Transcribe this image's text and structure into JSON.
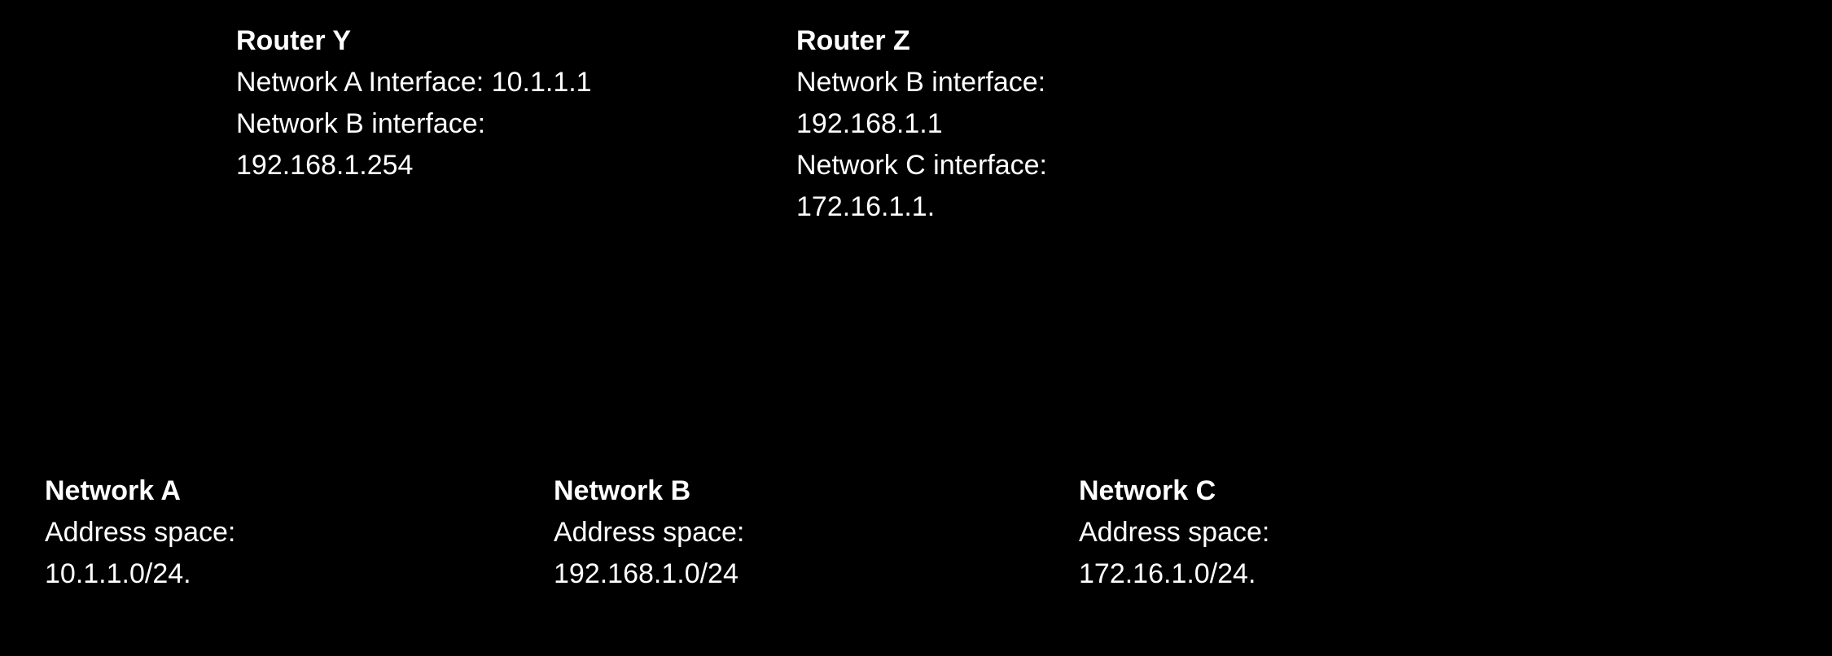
{
  "background_color": "#000000",
  "text_color": "#ffffff",
  "font_family": "Arial, Helvetica, sans-serif",
  "title_fontsize": 34,
  "detail_fontsize": 34,
  "title_fontweight": 700,
  "detail_fontweight": 400,
  "routers": {
    "y": {
      "title": "Router Y",
      "line1": "Network A Interface: 10.1.1.1",
      "line2": "Network B interface:",
      "line3": "192.168.1.254"
    },
    "z": {
      "title": "Router Z",
      "line1": "Network B interface:",
      "line2": "192.168.1.1",
      "line3": "Network C interface:",
      "line4": "172.16.1.1."
    }
  },
  "networks": {
    "a": {
      "title": "Network A",
      "line1": "Address space:",
      "line2": "10.1.1.0/24."
    },
    "b": {
      "title": "Network B",
      "line1": "Address space:",
      "line2": "192.168.1.0/24"
    },
    "c": {
      "title": "Network C",
      "line1": "Address space:",
      "line2": "172.16.1.0/24."
    }
  }
}
